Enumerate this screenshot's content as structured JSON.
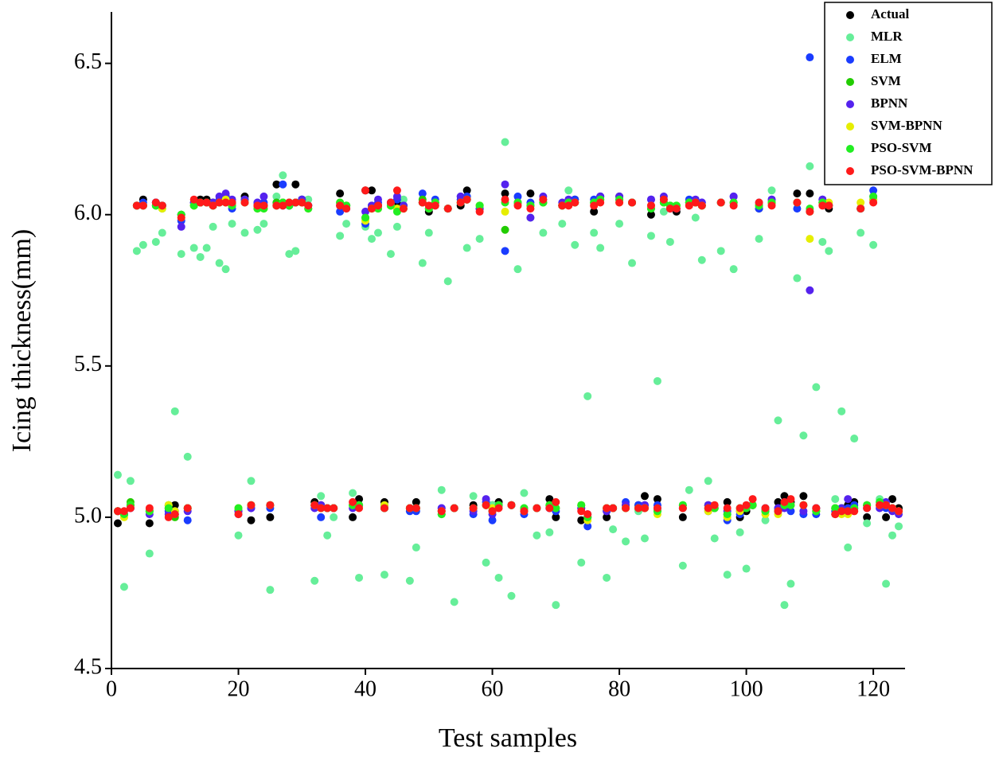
{
  "chart_data": {
    "type": "scatter",
    "x_label": "Test samples",
    "y_label": "Icing thickness(mm)",
    "xlim": [
      0,
      125
    ],
    "ylim": [
      4.5,
      6.67
    ],
    "xticks": [
      0,
      20,
      40,
      60,
      80,
      100,
      120
    ],
    "yticks": [
      4.5,
      {
        "value": 5,
        "label": "5.0"
      },
      5.5,
      {
        "value": 6,
        "label": "6.0"
      },
      6.5
    ],
    "legend": "upper right",
    "x": [
      1,
      2,
      3,
      4,
      5,
      6,
      7,
      8,
      9,
      10,
      11,
      12,
      13,
      14,
      15,
      16,
      17,
      18,
      19,
      20,
      21,
      22,
      23,
      24,
      25,
      26,
      27,
      28,
      29,
      30,
      31,
      32,
      33,
      34,
      35,
      36,
      37,
      38,
      39,
      40,
      41,
      42,
      43,
      44,
      45,
      46,
      47,
      48,
      49,
      50,
      51,
      52,
      53,
      54,
      55,
      56,
      57,
      58,
      59,
      60,
      61,
      62,
      63,
      64,
      65,
      66,
      67,
      68,
      69,
      70,
      71,
      72,
      73,
      74,
      75,
      76,
      77,
      78,
      79,
      80,
      81,
      82,
      83,
      84,
      85,
      86,
      87,
      88,
      89,
      90,
      91,
      92,
      93,
      94,
      95,
      96,
      97,
      98,
      99,
      100,
      101,
      102,
      103,
      104,
      105,
      106,
      107,
      108,
      109,
      110,
      111,
      112,
      113,
      114,
      115,
      116,
      117,
      118,
      119,
      120,
      121,
      122,
      123,
      124
    ],
    "series": [
      {
        "name": "Actual",
        "color": "#000000",
        "values": [
          4.98,
          5.01,
          5.04,
          6.03,
          6.05,
          4.98,
          6.04,
          6.03,
          5.03,
          5.04,
          6.0,
          5.03,
          6.04,
          6.05,
          6.05,
          6.04,
          6.04,
          6.06,
          6.04,
          5.02,
          6.06,
          4.99,
          6.03,
          6.03,
          5.0,
          6.1,
          6.04,
          6.04,
          6.1,
          6.05,
          6.03,
          5.05,
          5.04,
          5.03,
          5.03,
          6.07,
          6.03,
          5.0,
          5.06,
          6.08,
          6.08,
          6.03,
          5.05,
          6.03,
          6.04,
          6.03,
          5.03,
          5.05,
          6.04,
          6.01,
          6.04,
          5.02,
          6.02,
          5.03,
          6.03,
          6.08,
          5.04,
          6.02,
          5.04,
          5.04,
          5.05,
          6.07,
          5.04,
          6.04,
          5.02,
          6.07,
          5.03,
          6.04,
          5.06,
          5.0,
          6.03,
          6.04,
          6.05,
          4.99,
          5.0,
          6.01,
          6.06,
          5.0,
          5.03,
          6.06,
          5.04,
          6.04,
          5.04,
          5.07,
          6.0,
          5.06,
          6.04,
          6.02,
          6.01,
          5.0,
          6.04,
          6.04,
          6.03,
          5.04,
          5.03,
          6.04,
          5.05,
          6.04,
          5.0,
          5.02,
          5.04,
          6.02,
          5.03,
          6.04,
          5.05,
          5.07,
          5.05,
          6.07,
          5.07,
          6.07,
          5.03,
          6.04,
          6.02,
          5.01,
          5.03,
          5.04,
          5.05,
          6.02,
          5.0,
          6.05,
          5.04,
          5.0,
          5.06,
          5.03
        ]
      },
      {
        "name": "MLR",
        "color": "#66ee99",
        "values": [
          5.14,
          4.77,
          5.12,
          5.88,
          5.9,
          4.88,
          5.91,
          5.94,
          5.04,
          5.35,
          5.87,
          5.2,
          5.89,
          5.86,
          5.89,
          5.96,
          5.84,
          5.82,
          5.97,
          4.94,
          5.94,
          5.12,
          5.95,
          5.97,
          4.76,
          6.06,
          6.13,
          5.87,
          5.88,
          6.05,
          6.05,
          4.79,
          5.07,
          4.94,
          5.0,
          5.93,
          5.97,
          5.08,
          4.8,
          5.96,
          5.92,
          5.94,
          4.81,
          5.87,
          5.96,
          6.05,
          4.79,
          4.9,
          5.84,
          5.94,
          6.03,
          5.09,
          5.78,
          4.72,
          6.06,
          5.89,
          5.07,
          5.92,
          4.85,
          5.04,
          4.8,
          6.24,
          4.74,
          5.82,
          5.08,
          5.99,
          4.94,
          5.94,
          4.95,
          4.71,
          5.97,
          6.08,
          5.9,
          4.85,
          5.4,
          5.94,
          5.89,
          4.8,
          4.96,
          5.97,
          4.92,
          5.84,
          5.02,
          4.93,
          5.93,
          5.45,
          6.01,
          5.91,
          6.02,
          4.84,
          5.09,
          5.99,
          5.85,
          5.12,
          4.93,
          5.88,
          4.81,
          5.82,
          4.95,
          4.83,
          5.04,
          5.92,
          4.99,
          6.08,
          5.32,
          4.71,
          4.78,
          5.79,
          5.27,
          6.16,
          5.43,
          5.91,
          5.88,
          5.06,
          5.35,
          4.9,
          5.26,
          5.94,
          4.98,
          5.9,
          5.06,
          4.78,
          4.94,
          4.97
        ]
      },
      {
        "name": "ELM",
        "color": "#1a3cff",
        "values": [
          5.02,
          5.01,
          5.03,
          6.03,
          6.04,
          5.02,
          6.04,
          6.03,
          5.02,
          5.01,
          5.98,
          4.99,
          6.04,
          6.04,
          6.04,
          6.03,
          6.05,
          6.06,
          6.02,
          5.01,
          6.05,
          5.03,
          6.04,
          6.04,
          5.03,
          6.04,
          6.1,
          6.03,
          6.04,
          6.05,
          6.03,
          5.04,
          5.0,
          5.03,
          5.03,
          6.01,
          6.03,
          5.04,
          5.04,
          5.97,
          6.03,
          6.04,
          5.03,
          6.04,
          6.05,
          6.03,
          5.02,
          5.02,
          6.07,
          6.02,
          6.05,
          5.03,
          6.02,
          5.03,
          6.05,
          6.06,
          5.01,
          6.02,
          5.05,
          4.99,
          5.04,
          5.88,
          5.04,
          6.06,
          5.01,
          6.04,
          5.03,
          6.05,
          5.03,
          5.02,
          6.03,
          6.04,
          6.05,
          5.03,
          4.97,
          6.05,
          6.06,
          5.02,
          5.03,
          6.05,
          5.05,
          6.04,
          5.04,
          5.04,
          6.05,
          5.04,
          6.05,
          6.03,
          6.02,
          5.03,
          6.05,
          6.04,
          6.04,
          5.02,
          5.03,
          6.04,
          4.99,
          6.06,
          5.01,
          5.03,
          5.04,
          6.02,
          5.02,
          6.05,
          5.03,
          5.05,
          5.02,
          6.02,
          5.01,
          6.52,
          5.01,
          6.05,
          6.03,
          5.02,
          5.02,
          5.03,
          5.04,
          6.02,
          5.03,
          6.08,
          5.04,
          5.03,
          5.03,
          5.02
        ]
      },
      {
        "name": "SVM",
        "color": "#22cc00",
        "values": [
          5.02,
          5.01,
          5.05,
          6.03,
          6.03,
          5.02,
          6.03,
          6.02,
          5.04,
          5.0,
          6.0,
          5.03,
          6.03,
          6.04,
          6.04,
          6.03,
          6.04,
          6.05,
          6.03,
          5.03,
          6.05,
          5.04,
          6.02,
          6.02,
          5.04,
          6.04,
          6.04,
          6.03,
          6.04,
          6.04,
          6.02,
          5.04,
          5.03,
          5.03,
          5.03,
          6.04,
          6.03,
          5.04,
          5.04,
          5.99,
          6.02,
          6.02,
          5.03,
          6.03,
          6.02,
          6.02,
          5.03,
          5.03,
          6.05,
          6.02,
          6.04,
          5.01,
          6.02,
          5.03,
          6.04,
          6.05,
          5.03,
          6.03,
          5.04,
          5.02,
          5.04,
          5.95,
          5.04,
          6.04,
          5.03,
          6.03,
          5.03,
          6.04,
          5.04,
          5.03,
          6.03,
          6.04,
          6.04,
          5.04,
          5.0,
          6.04,
          6.05,
          5.03,
          5.03,
          6.05,
          5.03,
          6.04,
          5.03,
          5.03,
          6.02,
          5.02,
          6.04,
          6.03,
          6.03,
          5.04,
          6.04,
          6.04,
          6.03,
          5.03,
          5.03,
          6.04,
          5.01,
          6.04,
          5.03,
          5.03,
          5.04,
          6.03,
          5.02,
          6.04,
          5.02,
          5.04,
          5.04,
          6.04,
          5.04,
          6.01,
          5.02,
          6.04,
          6.03,
          5.03,
          5.02,
          5.02,
          5.03,
          6.02,
          5.04,
          6.05,
          5.04,
          5.04,
          5.03,
          5.02
        ]
      },
      {
        "name": "BPNN",
        "color": "#5522ee",
        "values": [
          5.02,
          5.01,
          5.03,
          6.03,
          6.03,
          5.01,
          6.04,
          6.03,
          5.01,
          5.02,
          5.96,
          5.02,
          6.04,
          6.04,
          6.04,
          6.04,
          6.06,
          6.07,
          6.05,
          5.02,
          6.05,
          5.03,
          6.04,
          6.06,
          5.04,
          6.03,
          6.03,
          6.03,
          6.04,
          6.05,
          6.03,
          5.03,
          5.04,
          5.03,
          5.03,
          6.03,
          6.02,
          5.03,
          5.04,
          6.01,
          6.03,
          6.05,
          5.04,
          6.04,
          6.06,
          6.03,
          5.03,
          5.03,
          6.04,
          6.02,
          6.04,
          5.03,
          6.02,
          5.03,
          6.06,
          6.05,
          5.02,
          6.02,
          5.06,
          5.01,
          5.04,
          6.1,
          5.04,
          6.04,
          5.02,
          5.99,
          5.03,
          6.06,
          5.03,
          5.03,
          6.04,
          6.05,
          6.04,
          5.03,
          5.01,
          6.04,
          6.06,
          5.02,
          5.03,
          6.06,
          5.04,
          6.04,
          5.03,
          5.04,
          6.05,
          5.03,
          6.06,
          6.02,
          6.02,
          5.03,
          6.04,
          6.05,
          6.04,
          5.04,
          5.03,
          6.04,
          5.02,
          6.06,
          5.02,
          5.03,
          5.04,
          6.04,
          5.03,
          6.05,
          5.03,
          5.03,
          5.04,
          6.04,
          5.02,
          5.75,
          5.03,
          6.05,
          6.03,
          5.03,
          5.03,
          5.06,
          5.03,
          6.02,
          5.04,
          6.06,
          5.03,
          5.05,
          5.02,
          5.01
        ]
      },
      {
        "name": "SVM-BPNN",
        "color": "#e6ee00",
        "values": [
          5.02,
          5.0,
          5.04,
          6.03,
          6.03,
          5.02,
          6.03,
          6.02,
          5.04,
          5.02,
          5.99,
          5.03,
          6.03,
          6.04,
          6.04,
          6.03,
          6.04,
          6.05,
          6.03,
          5.03,
          6.04,
          5.04,
          6.02,
          6.02,
          5.04,
          6.03,
          6.04,
          6.04,
          6.04,
          6.04,
          6.02,
          5.04,
          5.03,
          5.03,
          5.03,
          6.04,
          6.03,
          5.04,
          5.04,
          5.98,
          6.02,
          6.02,
          5.04,
          6.03,
          6.02,
          6.02,
          5.03,
          5.03,
          6.04,
          6.02,
          6.04,
          5.02,
          6.02,
          5.03,
          6.04,
          6.05,
          5.03,
          6.03,
          5.04,
          5.03,
          5.04,
          6.01,
          5.04,
          6.04,
          5.02,
          6.03,
          5.03,
          6.04,
          5.04,
          5.03,
          6.03,
          6.04,
          6.04,
          5.04,
          4.99,
          6.04,
          6.05,
          5.03,
          5.03,
          6.04,
          5.03,
          6.04,
          5.03,
          5.03,
          6.03,
          5.01,
          6.04,
          6.03,
          6.03,
          5.03,
          6.04,
          6.04,
          6.03,
          5.02,
          5.03,
          6.04,
          5.0,
          6.04,
          5.02,
          5.03,
          5.04,
          6.03,
          5.01,
          6.04,
          5.01,
          5.04,
          5.04,
          6.04,
          5.04,
          5.92,
          5.02,
          6.04,
          6.04,
          5.03,
          5.01,
          5.01,
          5.02,
          6.04,
          5.04,
          6.05,
          5.04,
          5.04,
          5.03,
          5.02
        ]
      },
      {
        "name": "PSO-SVM",
        "color": "#22ee22",
        "values": [
          5.02,
          5.01,
          5.04,
          6.03,
          6.03,
          5.02,
          6.03,
          6.03,
          5.03,
          5.01,
          6.0,
          5.03,
          6.03,
          6.04,
          6.04,
          6.03,
          6.04,
          6.04,
          6.03,
          5.03,
          6.04,
          5.04,
          6.02,
          6.02,
          5.04,
          6.03,
          6.04,
          6.03,
          6.04,
          6.04,
          6.02,
          5.04,
          5.03,
          5.03,
          5.03,
          6.04,
          6.03,
          5.04,
          5.04,
          5.99,
          6.02,
          6.02,
          5.03,
          6.03,
          6.01,
          6.02,
          5.03,
          5.03,
          6.04,
          6.02,
          6.04,
          5.01,
          6.02,
          5.03,
          6.04,
          6.05,
          5.03,
          6.03,
          5.04,
          5.02,
          5.04,
          6.04,
          5.04,
          6.04,
          5.03,
          6.03,
          5.03,
          6.04,
          5.04,
          5.03,
          6.03,
          6.04,
          6.04,
          5.04,
          5.0,
          6.04,
          6.05,
          5.03,
          5.03,
          6.05,
          5.03,
          6.04,
          5.03,
          5.03,
          6.02,
          5.02,
          6.04,
          6.03,
          6.03,
          5.04,
          6.04,
          6.04,
          6.03,
          5.03,
          5.03,
          6.04,
          5.01,
          6.04,
          5.03,
          5.03,
          5.04,
          6.03,
          5.02,
          6.04,
          5.02,
          5.04,
          5.04,
          6.04,
          5.04,
          6.02,
          5.02,
          6.04,
          6.03,
          5.03,
          5.02,
          5.02,
          5.03,
          6.02,
          5.04,
          6.06,
          5.05,
          5.04,
          5.03,
          5.02
        ]
      },
      {
        "name": "PSO-SVM-BPNN",
        "color": "#ff1a1a",
        "values": [
          5.02,
          5.02,
          5.03,
          6.03,
          6.03,
          5.03,
          6.04,
          6.03,
          5.0,
          5.01,
          5.99,
          5.03,
          6.05,
          6.04,
          6.04,
          6.03,
          6.04,
          6.04,
          6.04,
          5.01,
          6.04,
          5.04,
          6.03,
          6.03,
          5.04,
          6.03,
          6.03,
          6.04,
          6.04,
          6.04,
          6.03,
          5.04,
          5.03,
          5.03,
          5.03,
          6.03,
          6.02,
          5.05,
          5.03,
          6.08,
          6.02,
          6.03,
          5.03,
          6.04,
          6.08,
          6.02,
          5.03,
          5.03,
          6.04,
          6.03,
          6.03,
          5.02,
          6.02,
          5.03,
          6.04,
          6.05,
          5.03,
          6.01,
          5.04,
          5.02,
          5.03,
          6.05,
          5.04,
          6.03,
          5.02,
          6.02,
          5.03,
          6.05,
          5.03,
          5.05,
          6.03,
          6.03,
          6.04,
          5.02,
          5.01,
          6.03,
          6.04,
          5.03,
          5.03,
          6.04,
          5.03,
          6.04,
          5.03,
          5.03,
          6.03,
          5.03,
          6.05,
          6.02,
          6.02,
          5.03,
          6.03,
          6.04,
          6.03,
          5.03,
          5.04,
          6.04,
          5.03,
          6.03,
          5.03,
          5.04,
          5.06,
          6.04,
          5.03,
          6.03,
          5.02,
          5.05,
          5.06,
          6.04,
          5.04,
          6.01,
          5.03,
          6.03,
          6.03,
          5.01,
          5.02,
          5.02,
          5.02,
          6.02,
          5.03,
          6.04,
          5.04,
          5.04,
          5.03,
          5.02
        ]
      }
    ]
  }
}
